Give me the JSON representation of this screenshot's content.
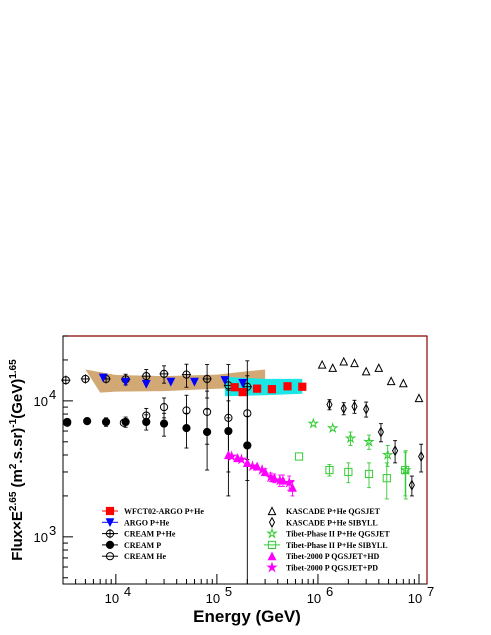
{
  "chart_data": {
    "type": "scatter",
    "xlabel": "Energy (GeV)",
    "ylabel": "Flux×E^{2.65} (m^{2}.s.sr)^{-1}(GeV)^{1.65}",
    "ylabel_parts": {
      "main": "Flux×E",
      "exp1": "2.65",
      "mid": " (m",
      "exp2": "2",
      "mid2": ".s.sr)",
      "exp3": "-1",
      "mid3": "(GeV)",
      "exp4": "1.65"
    },
    "xlabel_display": "Energy (GeV)",
    "xscale": "log",
    "yscale": "log",
    "xlim": [
      3000,
      12000000
    ],
    "ylim": [
      450,
      30000
    ],
    "x_ticks": [
      {
        "value": 10000,
        "base": "10",
        "exp": "4"
      },
      {
        "value": 100000,
        "base": "10",
        "exp": "5"
      },
      {
        "value": 1000000,
        "base": "10",
        "exp": "6"
      },
      {
        "value": 10000000,
        "base": "10",
        "exp": "7"
      }
    ],
    "y_ticks": [
      {
        "value": 1000,
        "base": "10",
        "exp": "3"
      },
      {
        "value": 10000,
        "base": "10",
        "exp": "4"
      }
    ],
    "bands": [
      {
        "name": "ARGO band",
        "color": "#d2a875",
        "upper": [
          [
            5000,
            17000
          ],
          [
            10000,
            15500
          ],
          [
            30000,
            15200
          ],
          [
            100000,
            15600
          ],
          [
            200000,
            16500
          ],
          [
            300000,
            17000
          ]
        ],
        "lower": [
          [
            300000,
            13000
          ],
          [
            200000,
            12500
          ],
          [
            100000,
            12300
          ],
          [
            30000,
            11800
          ],
          [
            10000,
            11700
          ],
          [
            7000,
            11500
          ]
        ]
      },
      {
        "name": "WFCT02-ARGO band",
        "color": "#1ae6e6",
        "upper": [
          [
            120000,
            15000
          ],
          [
            300000,
            14500
          ],
          [
            700000,
            14500
          ]
        ],
        "lower": [
          [
            700000,
            11300
          ],
          [
            300000,
            11000
          ],
          [
            120000,
            10800
          ]
        ]
      }
    ],
    "legend_left": [
      {
        "label": "WFCT02-ARGO P+He",
        "marker": "square",
        "color": "#ff0000",
        "fill": true
      },
      {
        "label": "ARGO P+He",
        "marker": "tri-down",
        "color": "#0000ff",
        "fill": true
      },
      {
        "label": "CREAM P+He",
        "marker": "cross-circle",
        "color": "#000000",
        "fill": false
      },
      {
        "label": "CREAM P",
        "marker": "circle",
        "color": "#000000",
        "fill": true
      },
      {
        "label": "CREAM He",
        "marker": "circle",
        "color": "#000000",
        "fill": false
      }
    ],
    "legend_right": [
      {
        "label": "KASCADE P+He QGSJET",
        "marker": "tri-up",
        "color": "#000000",
        "fill": false
      },
      {
        "label": "KASCADE P+He SIBYLL",
        "marker": "diamond",
        "color": "#000000",
        "fill": false
      },
      {
        "label": "Tibet-Phase II P+He QGSJET",
        "marker": "star",
        "color": "#33cc33",
        "fill": false
      },
      {
        "label": "Tibet-Phase II P+He SIBYLL",
        "marker": "square",
        "color": "#33cc33",
        "fill": false
      },
      {
        "label": "Tibet-2000 P QGSJET+HD",
        "marker": "tri-up",
        "color": "#ff00ff",
        "fill": true
      },
      {
        "label": "Tibet-2000 P QGSJET+PD",
        "marker": "star",
        "color": "#ff00ff",
        "fill": true
      }
    ],
    "series": [
      {
        "name": "CREAM P+He",
        "marker": "cross-circle",
        "color": "#000000",
        "fill": false,
        "points": [
          [
            3200,
            14200,
            0,
            0
          ],
          [
            5000,
            14500,
            0,
            0
          ],
          [
            8000,
            14500,
            0,
            0
          ],
          [
            12500,
            14400,
            1300,
            1300
          ],
          [
            20000,
            15200,
            1800,
            1800
          ],
          [
            30000,
            15800,
            2300,
            2300
          ],
          [
            50000,
            15600,
            3000,
            3000
          ],
          [
            80000,
            14500,
            4000,
            4000
          ],
          [
            130000,
            13000,
            5500,
            5500
          ],
          [
            200000,
            12700,
            9000,
            7000
          ]
        ]
      },
      {
        "name": "ARGO P+He",
        "marker": "tri-down",
        "color": "#0000ff",
        "fill": true,
        "points": [
          [
            7500,
            14800,
            0,
            0
          ],
          [
            12500,
            13800,
            0,
            0
          ],
          [
            20000,
            13300,
            0,
            0
          ],
          [
            35000,
            13800,
            0,
            0
          ],
          [
            60000,
            13800,
            0,
            0
          ],
          [
            120000,
            14200,
            0,
            0
          ],
          [
            180000,
            13500,
            0,
            0
          ]
        ]
      },
      {
        "name": "WFCT02-ARGO P+He",
        "marker": "square",
        "color": "#ff0000",
        "fill": true,
        "points": [
          [
            150000,
            12600,
            0,
            0
          ],
          [
            180000,
            11600,
            0,
            0
          ],
          [
            250000,
            12300,
            0,
            0
          ],
          [
            350000,
            12200,
            0,
            0
          ],
          [
            500000,
            12800,
            0,
            0
          ],
          [
            700000,
            12700,
            0,
            0
          ]
        ]
      },
      {
        "name": "CREAM P",
        "marker": "circle",
        "color": "#000000",
        "fill": true,
        "points": [
          [
            3300,
            7000,
            0,
            0
          ],
          [
            5200,
            7100,
            0,
            0
          ],
          [
            8000,
            7000,
            500,
            500
          ],
          [
            12500,
            7000,
            600,
            600
          ],
          [
            20000,
            7000,
            900,
            900
          ],
          [
            30000,
            6800,
            1300,
            1300
          ],
          [
            50000,
            6300,
            1800,
            1800
          ],
          [
            80000,
            5900,
            2800,
            2800
          ],
          [
            130000,
            6000,
            4000,
            4000
          ],
          [
            200000,
            4700,
            5000,
            3000
          ]
        ]
      },
      {
        "name": "CREAM He",
        "marker": "circle",
        "color": "#000000",
        "fill": false,
        "points": [
          [
            3300,
            6900,
            0,
            0
          ],
          [
            12000,
            6900,
            0,
            0
          ],
          [
            20000,
            7800,
            1000,
            1000
          ],
          [
            30000,
            9000,
            1500,
            1500
          ],
          [
            50000,
            8500,
            2500,
            2500
          ],
          [
            80000,
            8300,
            3500,
            3500
          ],
          [
            130000,
            7500,
            4500,
            4500
          ],
          [
            200000,
            8100,
            5500,
            7200
          ]
        ]
      },
      {
        "name": "KASCADE P+He QGSJET",
        "marker": "tri-up",
        "color": "#000000",
        "fill": false,
        "points": [
          [
            1100000,
            18500,
            0,
            0
          ],
          [
            1400000,
            17500,
            0,
            0
          ],
          [
            1800000,
            19500,
            0,
            0
          ],
          [
            2300000,
            19000,
            0,
            0
          ],
          [
            3000000,
            16500,
            0,
            0
          ],
          [
            4000000,
            17500,
            0,
            0
          ],
          [
            5300000,
            14000,
            0,
            0
          ],
          [
            7000000,
            13500,
            0,
            0
          ],
          [
            10000000,
            10500,
            0,
            0
          ]
        ]
      },
      {
        "name": "KASCADE P+He SIBYLL",
        "marker": "diamond",
        "color": "#000000",
        "fill": false,
        "points": [
          [
            1300000,
            9400,
            800,
            800
          ],
          [
            1800000,
            8800,
            900,
            900
          ],
          [
            2300000,
            9100,
            1000,
            1000
          ],
          [
            3000000,
            8700,
            1100,
            1100
          ],
          [
            4200000,
            5900,
            900,
            900
          ],
          [
            5800000,
            4300,
            800,
            800
          ],
          [
            8500000,
            2400,
            400,
            400
          ],
          [
            10500000,
            3900,
            900,
            900
          ]
        ]
      },
      {
        "name": "Tibet-Phase II P+He QGSJET",
        "marker": "star",
        "color": "#33cc33",
        "fill": false,
        "points": [
          [
            900000,
            6800,
            0,
            0
          ],
          [
            1400000,
            6300,
            0,
            0
          ],
          [
            2100000,
            5300,
            600,
            600
          ],
          [
            3200000,
            5000,
            600,
            600
          ],
          [
            4900000,
            4000,
            700,
            700
          ],
          [
            7400000,
            3100,
            1200,
            1200
          ]
        ]
      },
      {
        "name": "Tibet-Phase II P+He SIBYLL",
        "marker": "square",
        "color": "#33cc33",
        "fill": false,
        "points": [
          [
            650000,
            3900,
            0,
            0
          ],
          [
            1300000,
            3100,
            300,
            300
          ],
          [
            2000000,
            3000,
            500,
            500
          ],
          [
            3200000,
            2900,
            600,
            600
          ],
          [
            4800000,
            2700,
            800,
            800
          ],
          [
            7300000,
            3100,
            1100,
            1100
          ]
        ]
      },
      {
        "name": "Tibet-2000 P QGSJET+HD",
        "marker": "tri-up",
        "color": "#ff00ff",
        "fill": true,
        "points": [
          [
            130000,
            4000,
            0,
            0
          ],
          [
            160000,
            3800,
            0,
            0
          ],
          [
            200000,
            3500,
            0,
            0
          ],
          [
            250000,
            3300,
            0,
            0
          ],
          [
            300000,
            3000,
            0,
            0
          ],
          [
            370000,
            2700,
            200,
            200
          ],
          [
            450000,
            2600,
            250,
            250
          ],
          [
            560000,
            2300,
            300,
            300
          ]
        ]
      },
      {
        "name": "Tibet-2000 P QGSJET+PD",
        "marker": "star",
        "color": "#ff00ff",
        "fill": true,
        "points": [
          [
            140000,
            3900,
            0,
            0
          ],
          [
            175000,
            3700,
            0,
            0
          ],
          [
            225000,
            3300,
            0,
            0
          ],
          [
            280000,
            3100,
            0,
            0
          ],
          [
            340000,
            2750,
            200,
            200
          ],
          [
            420000,
            2600,
            250,
            250
          ],
          [
            520000,
            2500,
            300,
            300
          ]
        ]
      }
    ]
  }
}
